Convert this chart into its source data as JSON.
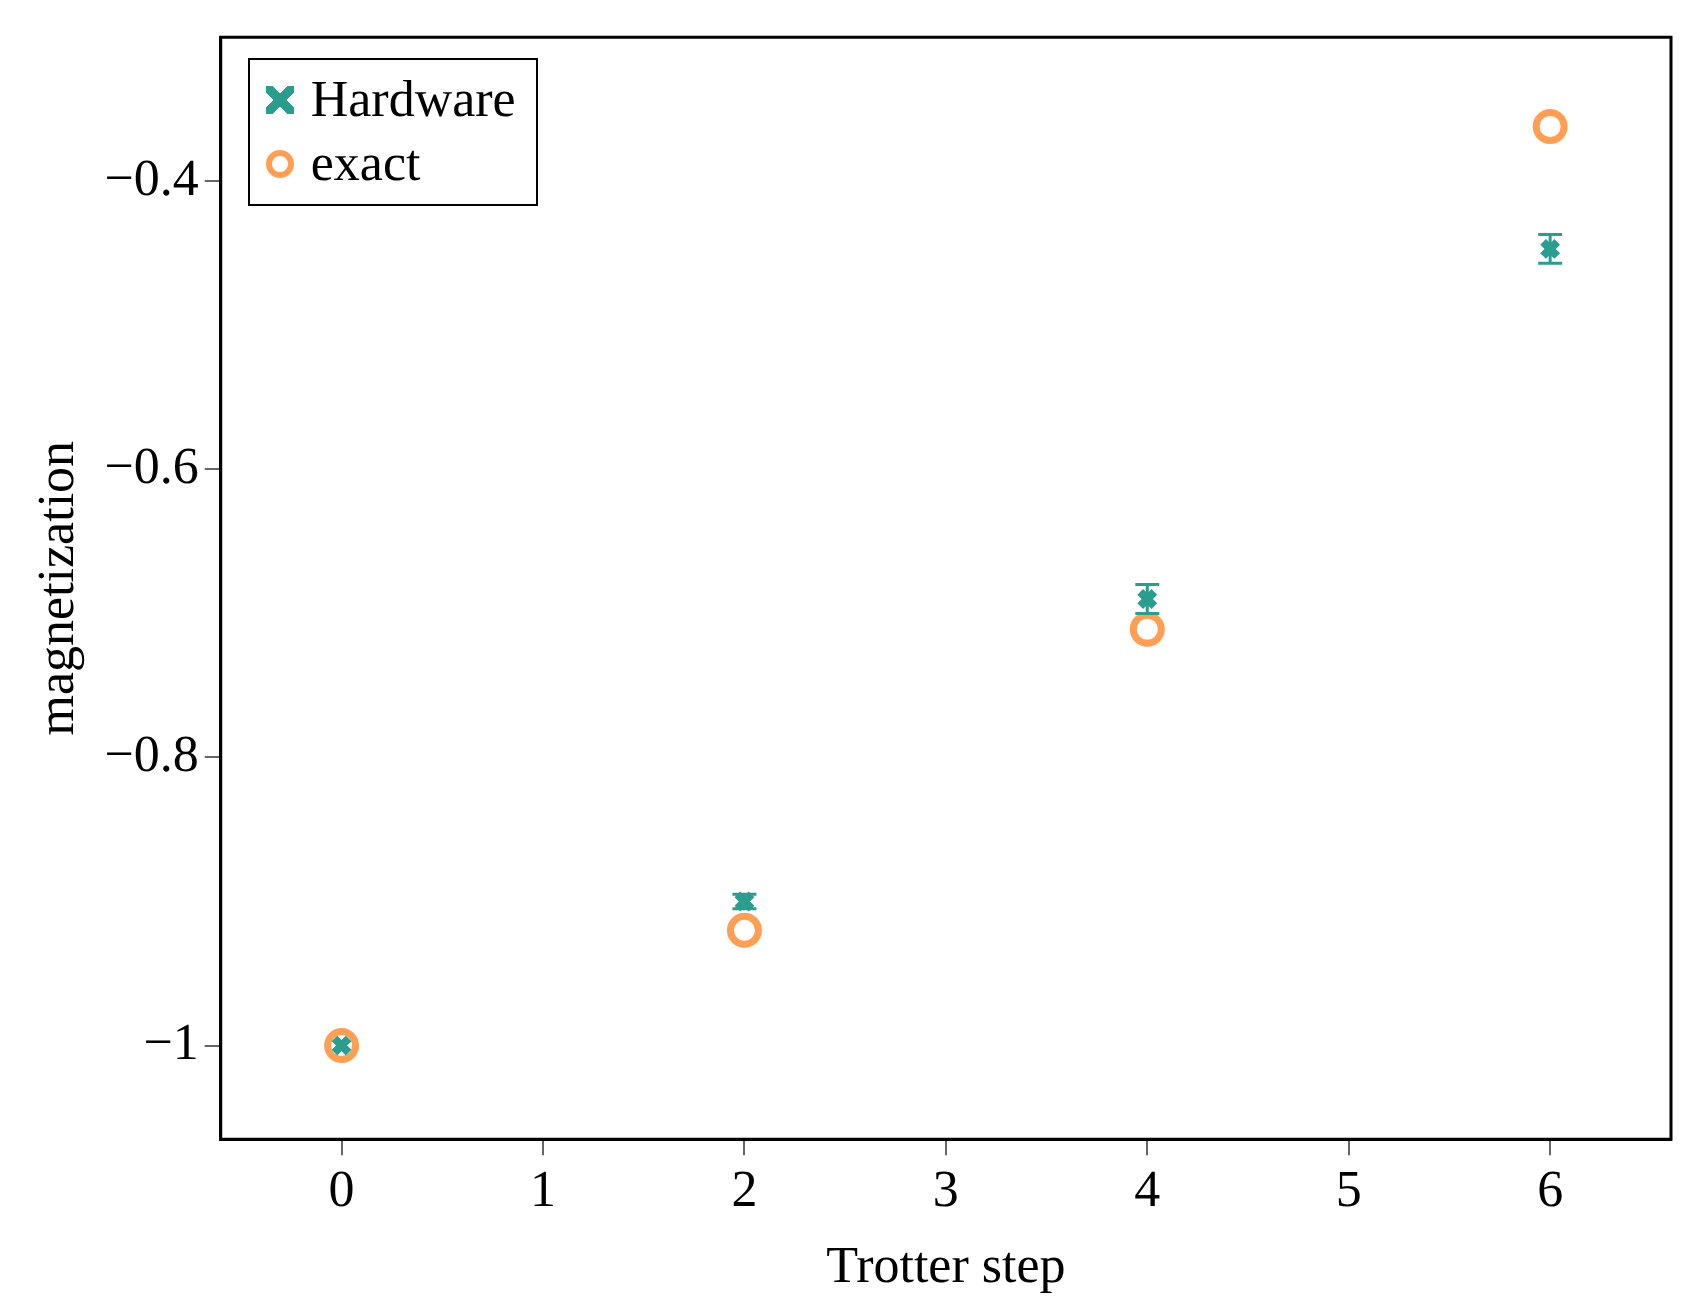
{
  "chart_data": {
    "type": "scatter",
    "xlabel": "Trotter step",
    "ylabel": "magnetization",
    "x": [
      0,
      2,
      4,
      6
    ],
    "series": [
      {
        "name": "Hardware",
        "color": "#2a9d8f",
        "marker": "cross",
        "values": [
          -1.0,
          -0.9,
          -0.69,
          -0.447
        ],
        "errors": [
          null,
          0.005,
          0.01,
          0.01
        ]
      },
      {
        "name": "exact",
        "color": "#ff9f55",
        "marker": "circle",
        "values": [
          -1.0,
          -0.92,
          -0.711,
          -0.362
        ]
      }
    ],
    "xlim": [
      -0.6,
      6.6
    ],
    "xticks": [
      0,
      1,
      2,
      3,
      4,
      5,
      6
    ],
    "ylim": [
      -1.065,
      -0.3
    ],
    "yticks": [
      {
        "value": -1,
        "label": "−1"
      },
      {
        "value": -0.8,
        "label": "−0.8"
      },
      {
        "value": -0.6,
        "label": "−0.6"
      },
      {
        "value": -0.4,
        "label": "−0.4"
      }
    ],
    "grid": false,
    "legend": "top left"
  }
}
